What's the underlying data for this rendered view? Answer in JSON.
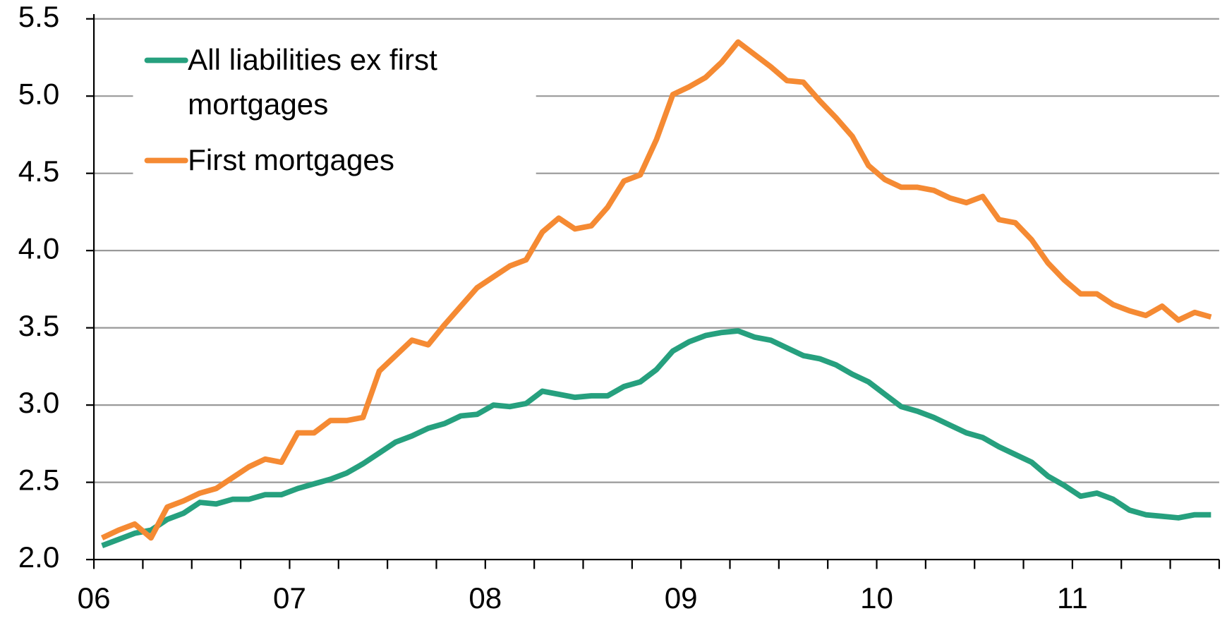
{
  "chart_data": {
    "type": "line",
    "categories": [
      "06",
      null,
      null,
      null,
      null,
      null,
      null,
      null,
      null,
      null,
      null,
      null,
      "07",
      null,
      null,
      null,
      null,
      null,
      null,
      null,
      null,
      null,
      null,
      null,
      "08",
      null,
      null,
      null,
      null,
      null,
      null,
      null,
      null,
      null,
      null,
      null,
      "09",
      null,
      null,
      null,
      null,
      null,
      null,
      null,
      null,
      null,
      null,
      null,
      "10",
      null,
      null,
      null,
      null,
      null,
      null,
      null,
      null,
      null,
      null,
      null,
      "11",
      null,
      null,
      null,
      null,
      null,
      null,
      null,
      null
    ],
    "series": [
      {
        "name": "All liabilities ex first mortgages",
        "color": "#26a07e",
        "values": [
          2.09,
          2.13,
          2.17,
          2.19,
          2.26,
          2.3,
          2.37,
          2.36,
          2.39,
          2.39,
          2.42,
          2.42,
          2.46,
          2.49,
          2.52,
          2.56,
          2.62,
          2.69,
          2.76,
          2.8,
          2.85,
          2.88,
          2.93,
          2.94,
          3.0,
          2.99,
          3.01,
          3.09,
          3.07,
          3.05,
          3.06,
          3.06,
          3.12,
          3.15,
          3.23,
          3.35,
          3.41,
          3.45,
          3.47,
          3.48,
          3.44,
          3.42,
          3.37,
          3.32,
          3.3,
          3.26,
          3.2,
          3.15,
          3.07,
          2.99,
          2.96,
          2.92,
          2.87,
          2.82,
          2.79,
          2.73,
          2.68,
          2.63,
          2.54,
          2.48,
          2.41,
          2.43,
          2.39,
          2.32,
          2.29,
          2.28,
          2.27,
          2.29,
          2.29
        ]
      },
      {
        "name": "First mortgages",
        "color": "#f58a33",
        "values": [
          2.14,
          2.19,
          2.23,
          2.14,
          2.34,
          2.38,
          2.43,
          2.46,
          2.53,
          2.6,
          2.65,
          2.63,
          2.82,
          2.82,
          2.9,
          2.9,
          2.92,
          3.22,
          3.32,
          3.42,
          3.39,
          3.52,
          3.64,
          3.76,
          3.83,
          3.9,
          3.94,
          4.12,
          4.21,
          4.14,
          4.16,
          4.28,
          4.45,
          4.49,
          4.72,
          5.01,
          5.06,
          5.12,
          5.22,
          5.35,
          5.27,
          5.19,
          5.1,
          5.09,
          4.97,
          4.86,
          4.74,
          4.55,
          4.46,
          4.41,
          4.41,
          4.39,
          4.34,
          4.31,
          4.35,
          4.2,
          4.18,
          4.07,
          3.92,
          3.81,
          3.72,
          3.72,
          3.65,
          3.61,
          3.58,
          3.64,
          3.55,
          3.6,
          3.57
        ]
      }
    ],
    "ylim": [
      2,
      5.5
    ],
    "yticks": [
      {
        "value": 2,
        "label": "2.0"
      },
      2.5,
      {
        "value": 3,
        "label": "3.0"
      },
      3.5,
      {
        "value": 4,
        "label": "4.0"
      },
      4.5,
      {
        "value": 5,
        "label": "5.0"
      },
      5.5
    ],
    "grid": true,
    "legend": "upper left"
  }
}
